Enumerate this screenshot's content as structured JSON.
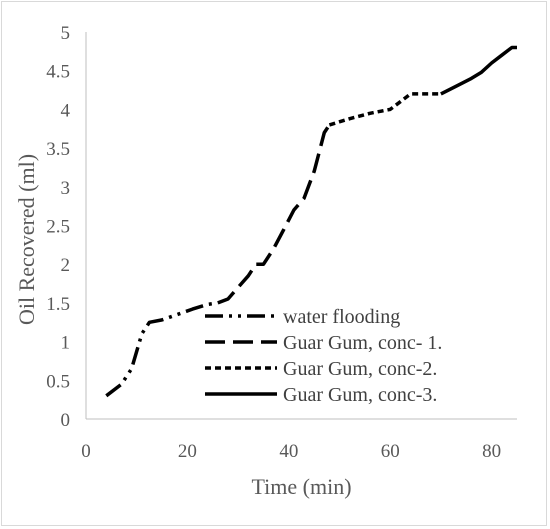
{
  "chart_data": {
    "type": "line",
    "title": "",
    "xlabel": "Time (min)",
    "ylabel": "Oil Recovered (ml)",
    "xlim": [
      0,
      85
    ],
    "ylim": [
      0,
      5
    ],
    "xticks": [
      0,
      20,
      40,
      60,
      80
    ],
    "yticks": [
      0,
      0.5,
      1,
      1.5,
      2,
      2.5,
      3,
      3.5,
      4,
      4.5,
      5
    ],
    "grid": false,
    "legend_position": "bottom-right",
    "line_color": "#000000",
    "series": [
      {
        "name": "water flooding",
        "dash": "long-dash-dot-dot",
        "points": [
          [
            4,
            0.3
          ],
          [
            7,
            0.45
          ],
          [
            9,
            0.65
          ],
          [
            11,
            1.1
          ],
          [
            12.5,
            1.25
          ],
          [
            15,
            1.28
          ],
          [
            18,
            1.35
          ],
          [
            21,
            1.42
          ],
          [
            24,
            1.48
          ],
          [
            26,
            1.5
          ]
        ]
      },
      {
        "name": "Guar Gum, conc- 1.",
        "dash": "long-dash",
        "points": [
          [
            26,
            1.5
          ],
          [
            28,
            1.55
          ],
          [
            30,
            1.7
          ],
          [
            32,
            1.85
          ],
          [
            33.5,
            2.0
          ],
          [
            35,
            2.0
          ],
          [
            37,
            2.2
          ],
          [
            39,
            2.45
          ],
          [
            41,
            2.7
          ],
          [
            43,
            2.85
          ],
          [
            45,
            3.2
          ],
          [
            47,
            3.7
          ],
          [
            48,
            3.8
          ]
        ]
      },
      {
        "name": "Guar Gum, conc-2.",
        "dash": "short-dash",
        "points": [
          [
            48,
            3.8
          ],
          [
            52,
            3.88
          ],
          [
            56,
            3.95
          ],
          [
            60,
            4.0
          ],
          [
            62,
            4.1
          ],
          [
            64,
            4.2
          ],
          [
            67,
            4.2
          ],
          [
            70,
            4.2
          ]
        ]
      },
      {
        "name": "Guar Gum, conc-3.",
        "dash": "solid",
        "points": [
          [
            70,
            4.2
          ],
          [
            73,
            4.3
          ],
          [
            76,
            4.4
          ],
          [
            78,
            4.48
          ],
          [
            80,
            4.6
          ],
          [
            82,
            4.7
          ],
          [
            84,
            4.8
          ],
          [
            85,
            4.8
          ]
        ]
      }
    ]
  }
}
